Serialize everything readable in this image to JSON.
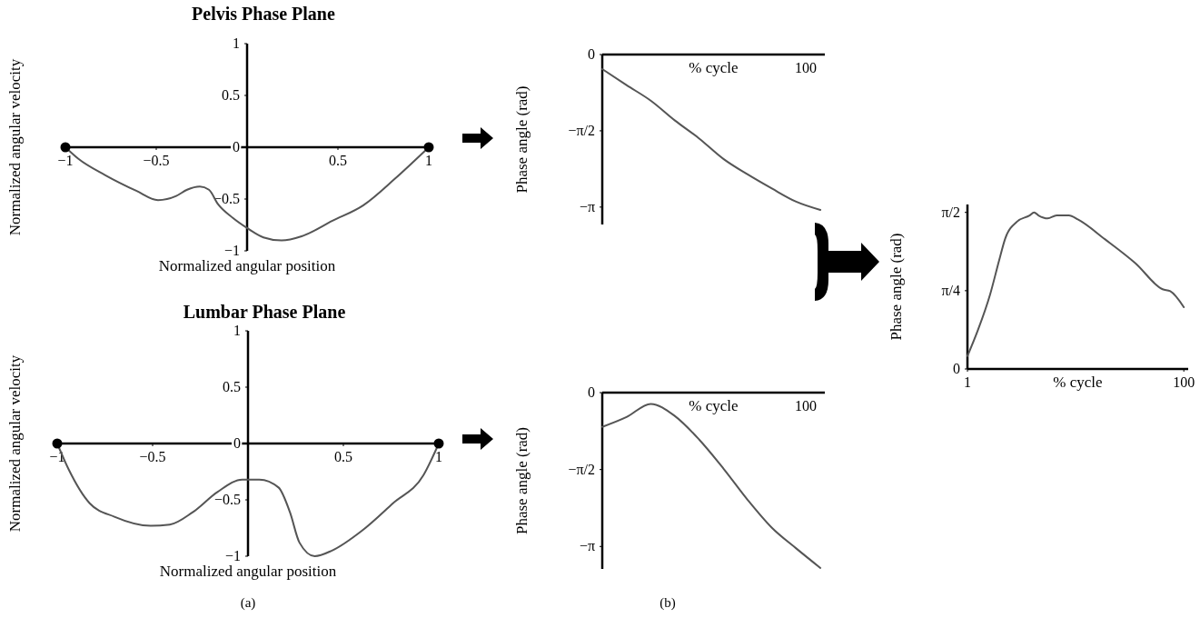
{
  "chart_data": [
    {
      "type": "line",
      "title": "Pelvis Phase Plane",
      "xlabel": "Normalized angular position",
      "ylabel": "Normalized angular velocity",
      "xlim": [
        -1,
        1
      ],
      "ylim": [
        -1,
        1
      ],
      "xticks": [
        -1,
        -0.5,
        0.5,
        1
      ],
      "yticks": [
        -1,
        -0.5,
        0,
        0.5,
        1
      ],
      "series": [
        {
          "color": "#555555",
          "x": [
            -1,
            -0.93,
            -0.78,
            -0.61,
            -0.49,
            -0.39,
            -0.33,
            -0.26,
            -0.21,
            -0.16,
            -0.08,
            0,
            0.09,
            0.19,
            0.3,
            0.47,
            0.64,
            0.81,
            1
          ],
          "values": [
            0,
            -0.11,
            -0.27,
            -0.42,
            -0.51,
            -0.47,
            -0.41,
            -0.38,
            -0.41,
            -0.55,
            -0.68,
            -0.78,
            -0.87,
            -0.9,
            -0.86,
            -0.71,
            -0.56,
            -0.31,
            0
          ]
        },
        {
          "type": "scatter",
          "color": "#000000",
          "marker": "circle",
          "x": [
            -1,
            1
          ],
          "values": [
            0,
            0
          ]
        }
      ]
    },
    {
      "type": "line",
      "title": "Lumbar Phase Plane",
      "xlabel": "Normalized angular position",
      "ylabel": "Normalized angular velocity",
      "xlim": [
        -1,
        1
      ],
      "ylim": [
        -1,
        1
      ],
      "xticks": [
        -1,
        -0.5,
        0.5,
        1
      ],
      "yticks": [
        -1,
        -0.5,
        0,
        0.5,
        1
      ],
      "annotations": [
        "(a)"
      ],
      "series": [
        {
          "color": "#555555",
          "x": [
            -1,
            -0.94,
            -0.83,
            -0.7,
            -0.51,
            -0.41,
            -0.29,
            -0.16,
            -0.03,
            0.06,
            0.16,
            0.22,
            0.27,
            0.35,
            0.44,
            0.6,
            0.76,
            0.92,
            1
          ],
          "values": [
            0,
            -0.23,
            -0.53,
            -0.65,
            -0.73,
            -0.72,
            -0.61,
            -0.43,
            -0.32,
            -0.32,
            -0.39,
            -0.61,
            -0.88,
            -1,
            -0.95,
            -0.77,
            -0.53,
            -0.28,
            0
          ]
        },
        {
          "type": "scatter",
          "color": "#000000",
          "marker": "circle",
          "x": [
            -1,
            1
          ],
          "values": [
            0,
            0
          ]
        }
      ]
    },
    {
      "type": "line",
      "xlabel": "% cycle",
      "ylabel": "Phase angle (rad)",
      "categories": [
        null,
        null,
        null,
        null,
        null,
        null,
        null,
        null,
        null,
        null
      ],
      "ylim": [
        -3.5,
        0
      ],
      "yticks": [
        {
          "value": -3.1416,
          "label": "−π"
        },
        {
          "value": -1.5708,
          "label": "−π/2"
        },
        {
          "value": 0,
          "label": "0"
        }
      ],
      "annotations": [
        "100"
      ],
      "series": [
        {
          "color": "#555555",
          "values": [
            -0.3,
            -0.63,
            -0.95,
            -1.36,
            -1.73,
            -2.15,
            -2.47,
            -2.76,
            -3.03,
            -3.2
          ]
        }
      ]
    },
    {
      "type": "line",
      "xlabel": "% cycle",
      "ylabel": "Phase angle (rad)",
      "categories": [
        null,
        null,
        null,
        null,
        null,
        null,
        null,
        null,
        null,
        null
      ],
      "ylim": [
        -3.6,
        0
      ],
      "yticks": [
        {
          "value": -3.1416,
          "label": "−π"
        },
        {
          "value": -1.5708,
          "label": "−π/2"
        },
        {
          "value": 0,
          "label": "0"
        }
      ],
      "annotations": [
        "100",
        "(b)"
      ],
      "series": [
        {
          "color": "#555555",
          "values": [
            -0.7,
            -0.5,
            -0.23,
            -0.48,
            -0.96,
            -1.55,
            -2.19,
            -2.76,
            -3.18,
            -3.58
          ]
        }
      ]
    },
    {
      "type": "line",
      "xlabel": "% cycle",
      "ylabel": "Phase angle (rad)",
      "xlim": [
        1,
        102
      ],
      "ylim": [
        0,
        1.65
      ],
      "xticks": [
        1,
        100
      ],
      "yticks": [
        0,
        {
          "value": 0.7854,
          "label": "π/4"
        },
        {
          "value": 1.5708,
          "label": "π/2"
        }
      ],
      "series": [
        {
          "color": "#555555",
          "x": [
            1,
            5.8,
            11.4,
            15.5,
            18.3,
            23.8,
            29.4,
            31.5,
            33.5,
            37.7,
            41.8,
            47.4,
            51.5,
            64,
            77.9,
            90.3,
            93.8,
            100
          ],
          "values": [
            0.13,
            0.39,
            0.75,
            1.09,
            1.31,
            1.48,
            1.54,
            1.57,
            1.54,
            1.51,
            1.54,
            1.54,
            1.5,
            1.3,
            1.06,
            0.8,
            0.78,
            0.62
          ]
        }
      ]
    }
  ]
}
